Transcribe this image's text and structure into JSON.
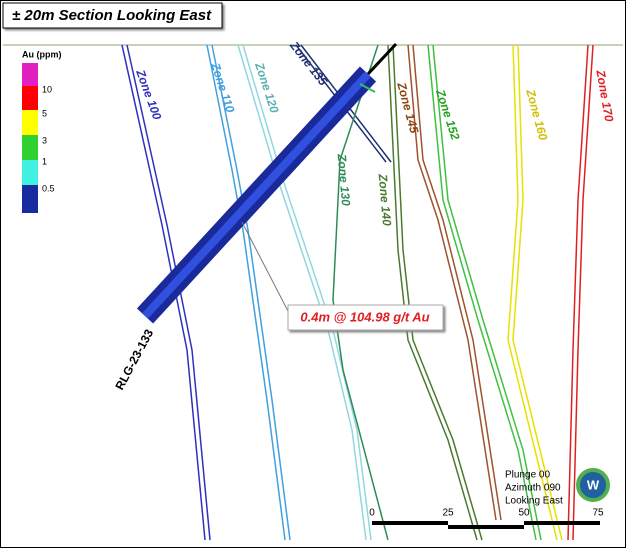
{
  "title": "± 20m Section Looking East",
  "legend": {
    "title": "Au (ppm)",
    "labels": [
      "10",
      "5",
      "3",
      "1",
      "0.5"
    ]
  },
  "zones": [
    "Zone 100",
    "Zone 110",
    "Zone 120",
    "Zone 135",
    "Zone 130",
    "Zone 140",
    "Zone 145",
    "Zone 152",
    "Zone 160",
    "Zone 170"
  ],
  "drillhole": "RLG-23-133",
  "annotation": "0.4m @ 104.98 g/t Au",
  "view": {
    "lines": [
      "Plunge 00",
      "Azimuth 090",
      "Looking East"
    ],
    "logo": "W"
  },
  "scale_bar": [
    "0",
    "25",
    "50",
    "75"
  ]
}
